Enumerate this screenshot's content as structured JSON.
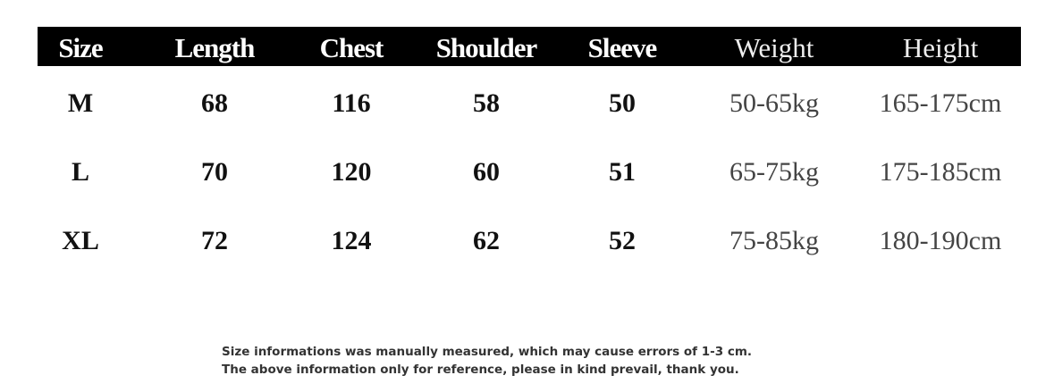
{
  "table": {
    "header": [
      "Size",
      "Length",
      "Chest",
      "Shoulder",
      "Sleeve",
      "Weight",
      "Height"
    ],
    "rows": [
      [
        "M",
        "68",
        "116",
        "58",
        "50",
        "50-65kg",
        "165-175cm"
      ],
      [
        "L",
        "70",
        "120",
        "60",
        "51",
        "65-75kg",
        "175-185cm"
      ],
      [
        "XL",
        "72",
        "124",
        "62",
        "52",
        "75-85kg",
        "180-190cm"
      ]
    ]
  },
  "notes": [
    "Size informations was manually measured, which may cause errors of 1-3 cm.",
    "The above information only for reference, please in kind prevail, thank you."
  ]
}
